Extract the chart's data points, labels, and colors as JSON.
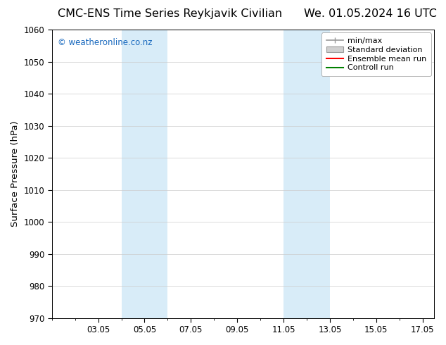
{
  "title_left": "CMC-ENS Time Series Reykjavik Civilian",
  "title_right": "We. 01.05.2024 16 UTC",
  "ylabel": "Surface Pressure (hPa)",
  "ylim": [
    970,
    1060
  ],
  "yticks": [
    970,
    980,
    990,
    1000,
    1010,
    1020,
    1030,
    1040,
    1050,
    1060
  ],
  "xtick_positions": [
    3,
    5,
    7,
    9,
    11,
    13,
    15,
    17
  ],
  "xtick_labels": [
    "03.05",
    "05.05",
    "07.05",
    "09.05",
    "11.05",
    "13.05",
    "15.05",
    "17.05"
  ],
  "xlim": [
    1.0,
    17.5
  ],
  "watermark": "© weatheronline.co.nz",
  "watermark_color": "#1a6abf",
  "shaded_bands": [
    {
      "x_start": 4.0,
      "x_end": 6.0
    },
    {
      "x_start": 11.0,
      "x_end": 13.0
    }
  ],
  "shade_color": "#d8ecf8",
  "legend_items": [
    {
      "label": "min/max",
      "color": "#aaaaaa",
      "style": "line"
    },
    {
      "label": "Standard deviation",
      "color": "#cccccc",
      "style": "patch"
    },
    {
      "label": "Ensemble mean run",
      "color": "#ff0000",
      "style": "line"
    },
    {
      "label": "Controll run",
      "color": "#008000",
      "style": "line"
    }
  ],
  "background_color": "#ffffff",
  "grid_color": "#cccccc",
  "title_fontsize": 11.5,
  "tick_fontsize": 8.5,
  "ylabel_fontsize": 9.5,
  "legend_fontsize": 8
}
